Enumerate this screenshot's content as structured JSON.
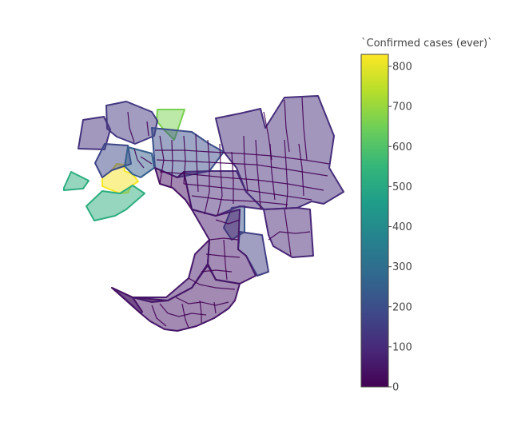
{
  "chart_data": {
    "type": "choropleth",
    "colorbar": {
      "title": "`Confirmed cases (ever)`",
      "range": [
        0,
        830
      ],
      "tick_values": [
        0,
        100,
        200,
        300,
        400,
        500,
        600,
        700,
        800
      ],
      "tick_labels": [
        "0",
        "100",
        "200",
        "300",
        "400",
        "500",
        "600",
        "700",
        "800"
      ],
      "colorscale": [
        "#440154",
        "#482878",
        "#3e4989",
        "#31688e",
        "#26828e",
        "#1f9e89",
        "#35b779",
        "#6ece58",
        "#b5de2b",
        "#fde725"
      ]
    },
    "region_opacity": 0.5,
    "region_values": [
      820,
      660,
      520,
      520,
      140,
      120,
      180,
      250,
      200,
      220,
      160,
      110,
      100,
      90,
      60,
      60,
      50,
      40,
      40
    ]
  }
}
